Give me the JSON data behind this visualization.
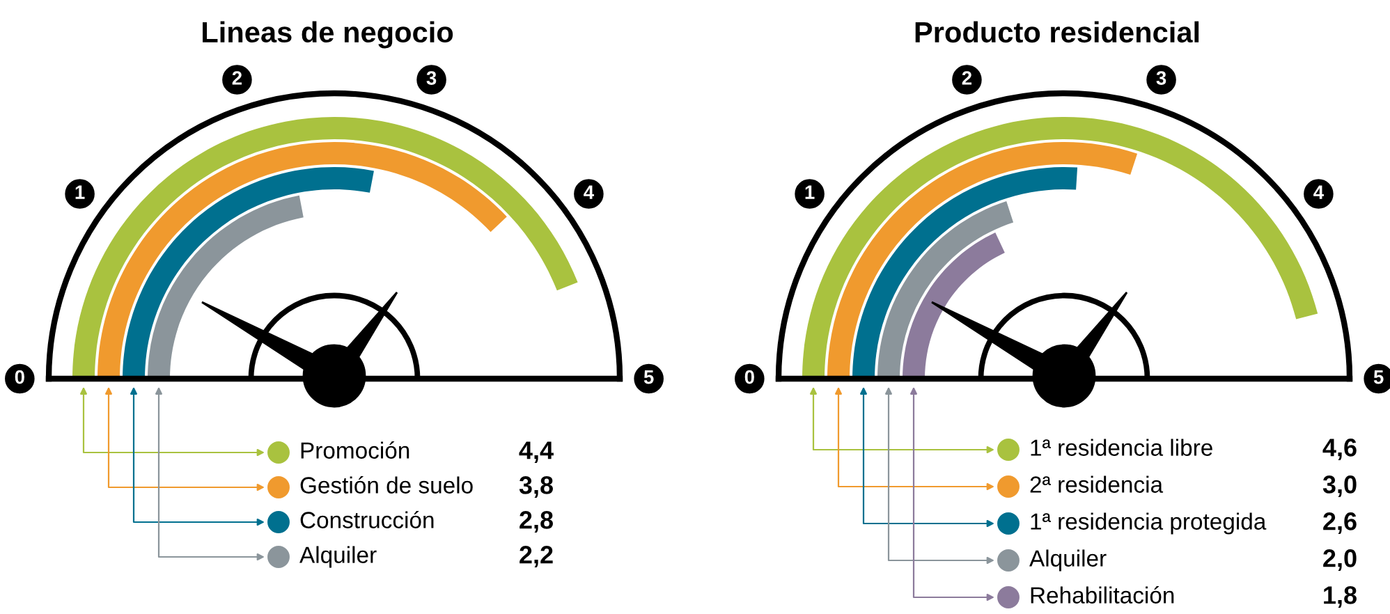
{
  "chart_data": [
    {
      "type": "other",
      "title": "Lineas de negocio",
      "annotations": [
        "0",
        "1",
        "2",
        "3",
        "4",
        "5"
      ],
      "categories": [
        "Promoción",
        "Gestión de suelo",
        "Construcción",
        "Alquiler"
      ],
      "values": [
        4.4,
        3.8,
        2.8,
        2.2
      ],
      "value_labels": [
        "4,4",
        "3,8",
        "2,8",
        "2,2"
      ],
      "colors": [
        "#a9c23f",
        "#f09a2e",
        "#00708f",
        "#8b959b"
      ]
    },
    {
      "type": "other",
      "title": "Producto residencial",
      "annotations": [
        "0",
        "1",
        "2",
        "3",
        "4",
        "5"
      ],
      "categories": [
        "1ª residencia libre",
        "2ª residencia",
        "1ª residencia protegida",
        "Alquiler",
        "Rehabilitación"
      ],
      "values": [
        4.6,
        3.0,
        2.6,
        2.0,
        1.8
      ],
      "value_labels": [
        "4,6",
        "3,0",
        "2,6",
        "2,0",
        "1,8"
      ],
      "colors": [
        "#a9c23f",
        "#f09a2e",
        "#00708f",
        "#8b959b",
        "#8c7b9c"
      ]
    }
  ]
}
